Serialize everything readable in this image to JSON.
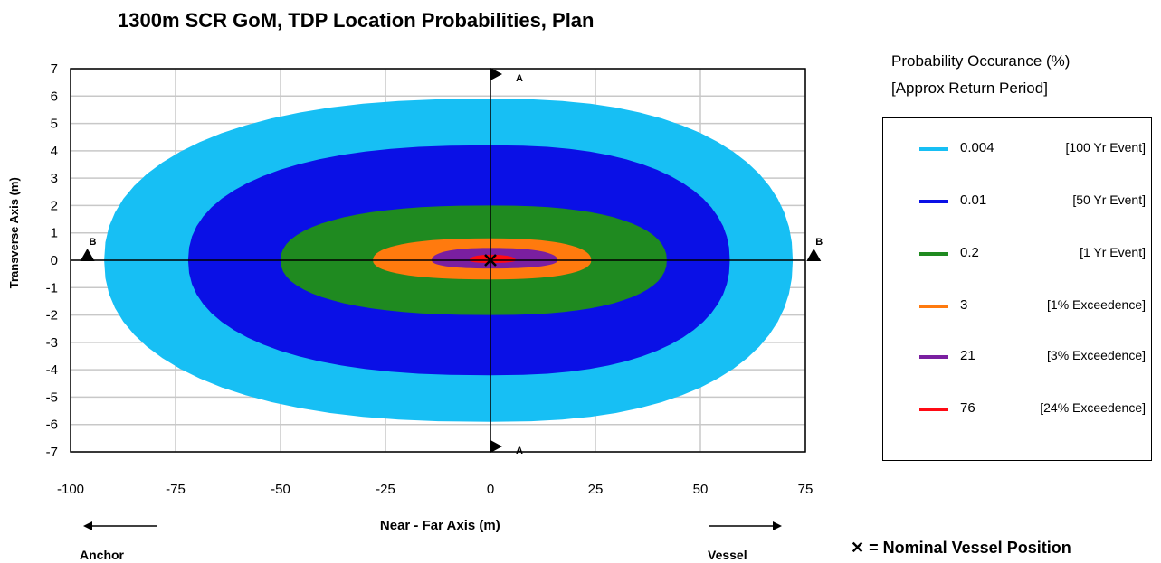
{
  "chart_data": {
    "type": "area",
    "title": "1300m SCR GoM, TDP Location Probabilities, Plan",
    "xlabel": "Near - Far Axis (m)",
    "ylabel": "Transverse Axis (m)",
    "xlim": [
      -100,
      75
    ],
    "ylim": [
      -7,
      7
    ],
    "xticks": [
      -100,
      -75,
      -50,
      -25,
      0,
      25,
      50,
      75
    ],
    "yticks": [
      7,
      6,
      5,
      4,
      3,
      2,
      1,
      0,
      -1,
      -2,
      -3,
      -4,
      -5,
      -6,
      -7
    ],
    "grid": true,
    "legend_placement": "right",
    "legend_title_1": "Probability  Occurance (%)",
    "legend_title_2": "[Approx Return  Period]",
    "series": [
      {
        "name": "0.004",
        "period": "[100 Yr Event]",
        "color": "#17BFF4",
        "x_range": [
          -92,
          72
        ],
        "y_range": [
          -5.9,
          5.9
        ]
      },
      {
        "name": "0.01",
        "period": "[50 Yr Event]",
        "color": "#0A10E6",
        "x_range": [
          -72,
          57
        ],
        "y_range": [
          -4.2,
          4.2
        ]
      },
      {
        "name": "0.2",
        "period": "[1  Yr Event]",
        "color": "#1F8A20",
        "x_range": [
          -50,
          42
        ],
        "y_range": [
          -2.0,
          2.0
        ]
      },
      {
        "name": "3",
        "period": "[1% Exceedence]",
        "color": "#FF7A0E",
        "x_range": [
          -28,
          24
        ],
        "y_range": [
          -0.7,
          0.8
        ]
      },
      {
        "name": "21",
        "period": "[3% Exceedence]",
        "color": "#7A1FA0",
        "x_range": [
          -14,
          16
        ],
        "y_range": [
          -0.3,
          0.45
        ]
      },
      {
        "name": "76",
        "period": "[24% Exceedence]",
        "color": "#FF0A14",
        "x_range": [
          -5,
          6
        ],
        "y_range": [
          -0.1,
          0.2
        ]
      }
    ],
    "section_markers": [
      {
        "label": "A",
        "x": 0,
        "y": 6.8
      },
      {
        "label": "A",
        "x": 0,
        "y": -6.8
      },
      {
        "label": "B",
        "x": -96,
        "y": 0.2
      },
      {
        "label": "B",
        "x": 77,
        "y": 0.2
      }
    ],
    "direction_left": "Anchor",
    "direction_right": "Vessel",
    "nominal_marker": {
      "x": 0,
      "y": 0
    },
    "nominal_note": "= Nominal Vessel Position"
  }
}
